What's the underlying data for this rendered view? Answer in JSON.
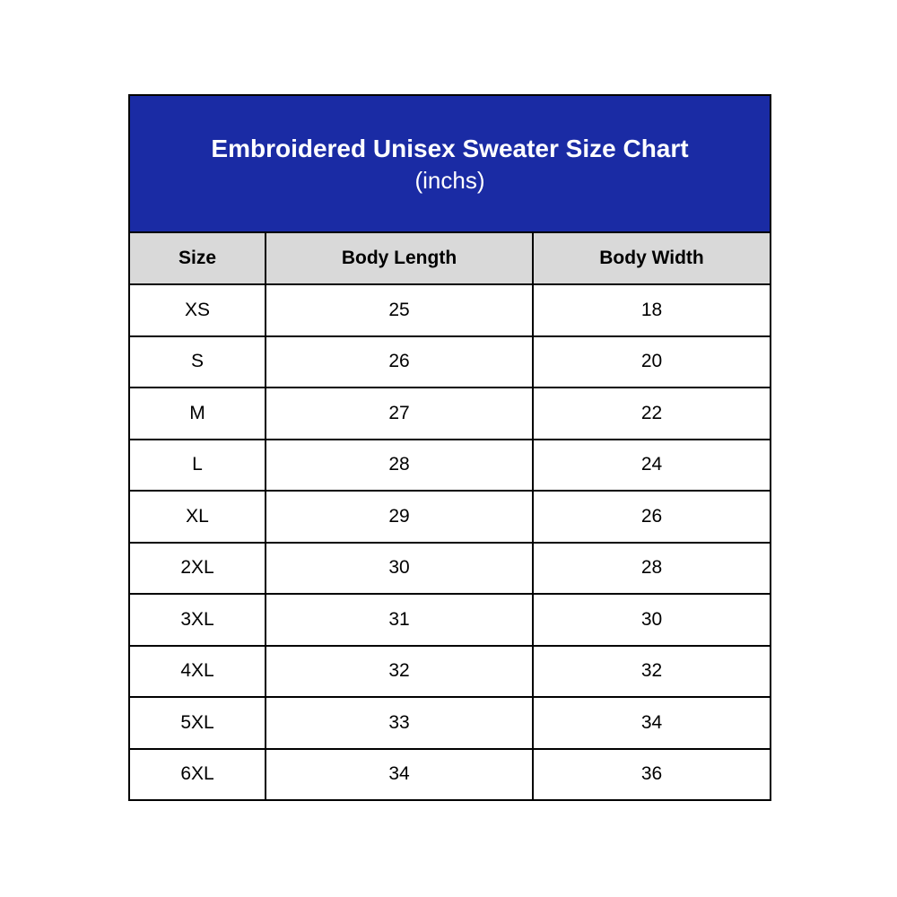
{
  "header": {
    "title": "Embroidered Unisex Sweater Size Chart",
    "subtitle": "(inchs)"
  },
  "table": {
    "columns": [
      "Size",
      "Body Length",
      "Body Width"
    ],
    "rows": [
      {
        "size": "XS",
        "body_length": "25",
        "body_width": "18"
      },
      {
        "size": "S",
        "body_length": "26",
        "body_width": "20"
      },
      {
        "size": "M",
        "body_length": "27",
        "body_width": "22"
      },
      {
        "size": "L",
        "body_length": "28",
        "body_width": "24"
      },
      {
        "size": "XL",
        "body_length": "29",
        "body_width": "26"
      },
      {
        "size": "2XL",
        "body_length": "30",
        "body_width": "28"
      },
      {
        "size": "3XL",
        "body_length": "31",
        "body_width": "30"
      },
      {
        "size": "4XL",
        "body_length": "32",
        "body_width": "32"
      },
      {
        "size": "5XL",
        "body_length": "33",
        "body_width": "34"
      },
      {
        "size": "6XL",
        "body_length": "34",
        "body_width": "36"
      }
    ]
  },
  "colors": {
    "title_bg": "#1A2BA4",
    "title_text": "#FFFFFF",
    "header_row_bg": "#D9D9D9",
    "cell_bg": "#FFFFFF",
    "border": "#000000",
    "text": "#000000",
    "page_bg": "#FFFFFF"
  },
  "chart_data": {
    "type": "table",
    "title": "Embroidered Unisex Sweater Size Chart",
    "unit_label": "(inchs)",
    "columns": [
      "Size",
      "Body Length",
      "Body Width"
    ],
    "rows": [
      [
        "XS",
        25,
        18
      ],
      [
        "S",
        26,
        20
      ],
      [
        "M",
        27,
        22
      ],
      [
        "L",
        28,
        24
      ],
      [
        "XL",
        29,
        26
      ],
      [
        "2XL",
        30,
        28
      ],
      [
        "3XL",
        31,
        30
      ],
      [
        "4XL",
        32,
        32
      ],
      [
        "5XL",
        33,
        34
      ],
      [
        "6XL",
        34,
        36
      ]
    ],
    "layout": {
      "title_banner_bg": "#1A2BA4",
      "header_row_bg": "#D9D9D9",
      "grid": true
    }
  }
}
